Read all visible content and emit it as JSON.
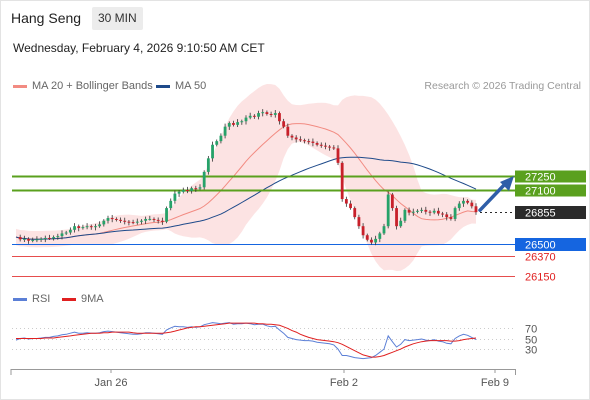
{
  "header": {
    "instrument": "Hang Seng",
    "timeframe": "30 MIN",
    "datetime": "Wednesday, February 4, 2026 9:10:50 AM CET"
  },
  "legend": {
    "items": [
      {
        "label": "MA 20 + Bollinger Bands",
        "color": "#f28b82"
      },
      {
        "label": "MA 50",
        "color": "#1e4a8a"
      }
    ],
    "credit": "Research © 2026 Trading Central"
  },
  "rsi_legend": {
    "items": [
      {
        "label": "RSI",
        "color": "#5b7fd6"
      },
      {
        "label": "9MA",
        "color": "#e02020"
      }
    ]
  },
  "chart_data": [
    {
      "type": "candlestick",
      "levels": [
        {
          "value": 27250,
          "label": "27250",
          "kind": "resistance",
          "color": "#5aa01e"
        },
        {
          "value": 27100,
          "label": "27100",
          "kind": "resistance",
          "color": "#5aa01e"
        },
        {
          "value": 26855,
          "label": "26855",
          "kind": "last-price",
          "color": "#2b2b2b"
        },
        {
          "value": 26500,
          "label": "26500",
          "kind": "pivot",
          "color": "#1565e0"
        },
        {
          "value": 26370,
          "label": "26370",
          "kind": "support",
          "color": "#e02020"
        },
        {
          "value": 26150,
          "label": "26150",
          "kind": "support",
          "color": "#e02020"
        }
      ],
      "ylim": [
        26050,
        28150
      ],
      "x_ticks": [
        "Jan 26",
        "Feb 2",
        "Feb 9"
      ],
      "closes": [
        26580,
        26555,
        26560,
        26540,
        26548,
        26555,
        26560,
        26570,
        26565,
        26580,
        26590,
        26620,
        26630,
        26660,
        26700,
        26680,
        26690,
        26700,
        26690,
        26700,
        26720,
        26760,
        26790,
        26780,
        26770,
        26760,
        26750,
        26745,
        26740,
        26750,
        26760,
        26780,
        26780,
        26770,
        26760,
        26750,
        26900,
        26980,
        27060,
        27080,
        27100,
        27090,
        27120,
        27115,
        27130,
        27300,
        27450,
        27600,
        27640,
        27700,
        27800,
        27840,
        27820,
        27850,
        27860,
        27900,
        27920,
        27910,
        27950,
        27960,
        27940,
        27930,
        27950,
        27860,
        27800,
        27700,
        27680,
        27660,
        27650,
        27640,
        27635,
        27620,
        27600,
        27590,
        27580,
        27570,
        27560,
        27400,
        27000,
        26950,
        26900,
        26800,
        26700,
        26600,
        26550,
        26520,
        26560,
        26620,
        26700,
        27050,
        26900,
        26700,
        26760,
        26880,
        26850,
        26860,
        26870,
        26880,
        26860,
        26850,
        26870,
        26840,
        26830,
        26800,
        26780,
        26900,
        26950,
        26980,
        26960,
        26920,
        26855
      ]
    },
    {
      "type": "line",
      "title": "RSI",
      "ylim": [
        0,
        100
      ],
      "y_ticks": [
        70,
        50,
        30
      ],
      "series": [
        {
          "name": "RSI",
          "values": [
            47,
            50,
            51,
            49,
            50,
            50,
            51,
            52,
            52,
            54,
            55,
            57,
            58,
            60,
            62,
            60,
            60,
            61,
            60,
            60,
            61,
            63,
            64,
            63,
            62,
            61,
            60,
            59,
            58,
            58,
            59,
            61,
            61,
            60,
            59,
            58,
            66,
            70,
            73,
            72,
            72,
            71,
            72,
            71,
            72,
            76,
            78,
            80,
            79,
            78,
            79,
            80,
            77,
            78,
            78,
            79,
            78,
            76,
            77,
            77,
            74,
            72,
            73,
            66,
            60,
            52,
            50,
            48,
            47,
            46,
            46,
            45,
            43,
            42,
            41,
            40,
            38,
            30,
            18,
            18,
            16,
            14,
            13,
            12,
            13,
            14,
            18,
            24,
            30,
            55,
            44,
            34,
            39,
            48,
            46,
            47,
            48,
            49,
            47,
            46,
            48,
            45,
            44,
            41,
            40,
            50,
            55,
            58,
            56,
            52,
            48
          ]
        },
        {
          "name": "9MA",
          "values": [
            50,
            50,
            50,
            50,
            50,
            50,
            50,
            51,
            51,
            51,
            52,
            53,
            54,
            55,
            56,
            57,
            58,
            59,
            60,
            60,
            60,
            61,
            61,
            62,
            62,
            62,
            62,
            62,
            61,
            60,
            60,
            60,
            60,
            60,
            60,
            60,
            61,
            62,
            64,
            66,
            68,
            70,
            71,
            72,
            72,
            73,
            74,
            75,
            76,
            77,
            78,
            79,
            79,
            79,
            79,
            79,
            79,
            79,
            78,
            78,
            77,
            77,
            76,
            75,
            72,
            69,
            65,
            62,
            58,
            55,
            52,
            50,
            48,
            47,
            46,
            45,
            44,
            42,
            39,
            35,
            31,
            27,
            23,
            19,
            17,
            15,
            15,
            16,
            18,
            21,
            24,
            27,
            30,
            34,
            37,
            40,
            42,
            44,
            45,
            46,
            46,
            46,
            46,
            46,
            45,
            45,
            46,
            48,
            49,
            50,
            51
          ]
        }
      ]
    }
  ]
}
